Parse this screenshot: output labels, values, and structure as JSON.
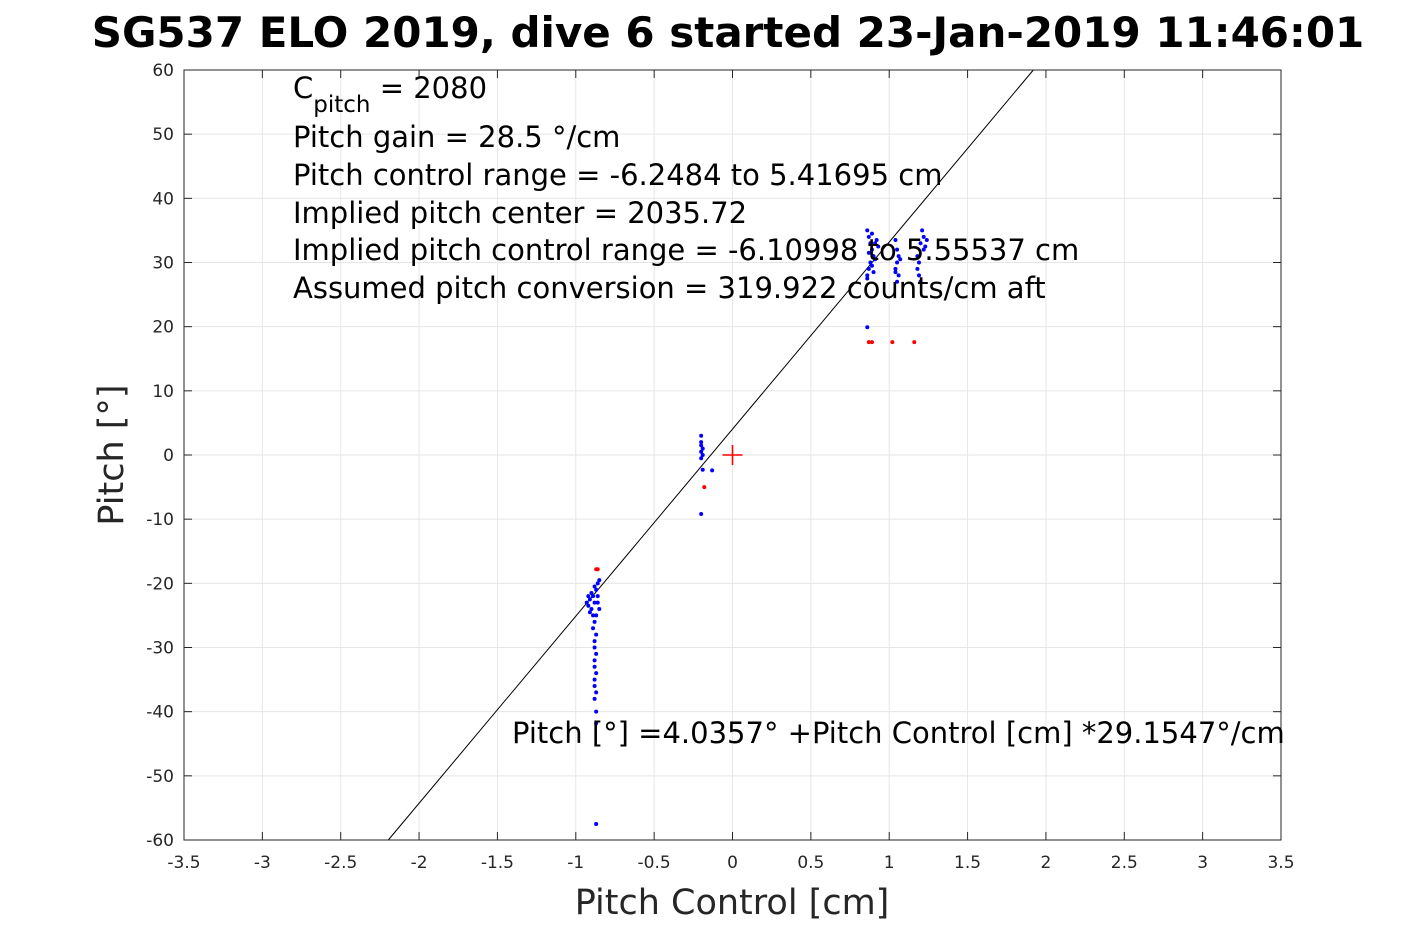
{
  "chart_data": {
    "type": "scatter",
    "title": "SG537 ELO 2019, dive 6 started 23-Jan-2019 11:46:01",
    "xlabel": "Pitch Control [cm]",
    "ylabel": "Pitch [°]",
    "xlim": [
      -3.5,
      3.5
    ],
    "ylim": [
      -60,
      60
    ],
    "xticks": [
      -3.5,
      -3,
      -2.5,
      -2,
      -1.5,
      -1,
      -0.5,
      0,
      0.5,
      1,
      1.5,
      2,
      2.5,
      3,
      3.5
    ],
    "xtick_labels": [
      "-3.5",
      "-3",
      "-2.5",
      "-2",
      "-1.5",
      "-1",
      "-0.5",
      "0",
      "0.5",
      "1",
      "1.5",
      "2",
      "2.5",
      "3",
      "3.5"
    ],
    "yticks": [
      -60,
      -50,
      -40,
      -30,
      -20,
      -10,
      0,
      10,
      20,
      30,
      40,
      50,
      60
    ],
    "ytick_labels": [
      "-60",
      "-50",
      "-40",
      "-30",
      "-20",
      "-10",
      "0",
      "10",
      "20",
      "30",
      "40",
      "50",
      "60"
    ],
    "grid": true,
    "colors": {
      "used": "#0000ff",
      "excluded": "#ff0000",
      "fit_line": "#000000",
      "center_marker": "#ff0000"
    },
    "annotations": {
      "cpitch": {
        "base": "C",
        "sub": "pitch",
        "rest": " = 2080"
      },
      "lines": [
        "Pitch gain = 28.5 °/cm",
        "Pitch control range = -6.2484 to 5.41695 cm",
        "Implied pitch center = 2035.72",
        "Implied pitch control range = -6.10998 to 5.55537 cm",
        "Assumed pitch conversion = 319.922 counts/cm aft"
      ],
      "fit_equation": "Pitch [°] =4.0357° +Pitch Control [cm] *29.1547°/cm"
    },
    "fit_line": {
      "intercept": 4.0357,
      "slope": 29.1547
    },
    "center_marker": {
      "x": 0,
      "y": 0
    },
    "series": [
      {
        "color_key": "used",
        "points": [
          [
            -0.93,
            -23.0
          ],
          [
            -0.92,
            -23.5
          ],
          [
            -0.91,
            -22.5
          ],
          [
            -0.9,
            -24.0
          ],
          [
            -0.89,
            -22.0
          ],
          [
            -0.88,
            -23.0
          ],
          [
            -0.87,
            -21.0
          ],
          [
            -0.86,
            -22.0
          ],
          [
            -0.85,
            -24.0
          ],
          [
            -0.9,
            -21.5
          ],
          [
            -0.88,
            -20.5
          ],
          [
            -0.86,
            -20.0
          ],
          [
            -0.89,
            -25.0
          ],
          [
            -0.88,
            -26.0
          ],
          [
            -0.87,
            -25.0
          ],
          [
            -0.89,
            -27.0
          ],
          [
            -0.87,
            -28.0
          ],
          [
            -0.88,
            -29.0
          ],
          [
            -0.88,
            -30.0
          ],
          [
            -0.87,
            -31.0
          ],
          [
            -0.88,
            -32.0
          ],
          [
            -0.88,
            -33.0
          ],
          [
            -0.87,
            -34.0
          ],
          [
            -0.88,
            -35.0
          ],
          [
            -0.88,
            -36.0
          ],
          [
            -0.87,
            -37.0
          ],
          [
            -0.88,
            -38.0
          ],
          [
            -0.87,
            -40.0
          ],
          [
            -0.87,
            -41.8
          ],
          [
            -0.87,
            -57.5
          ],
          [
            -0.85,
            -19.5
          ],
          [
            -0.86,
            -23.0
          ],
          [
            -0.91,
            -24.5
          ],
          [
            -0.92,
            -22.0
          ],
          [
            -0.2,
            3.0
          ],
          [
            -0.2,
            2.0
          ],
          [
            -0.2,
            1.5
          ],
          [
            -0.19,
            1.0
          ],
          [
            -0.2,
            0.5
          ],
          [
            -0.19,
            0.0
          ],
          [
            -0.2,
            -0.5
          ],
          [
            -0.19,
            -2.3
          ],
          [
            -0.13,
            -2.4
          ],
          [
            -0.2,
            -9.2
          ],
          [
            0.86,
            35.0
          ],
          [
            0.87,
            34.0
          ],
          [
            0.88,
            33.0
          ],
          [
            0.89,
            32.0
          ],
          [
            0.9,
            31.0
          ],
          [
            0.88,
            30.0
          ],
          [
            0.87,
            29.0
          ],
          [
            0.9,
            28.5
          ],
          [
            0.86,
            28.0
          ],
          [
            0.91,
            30.5
          ],
          [
            0.89,
            34.5
          ],
          [
            0.92,
            33.5
          ],
          [
            0.93,
            32.5
          ],
          [
            0.86,
            27.5
          ],
          [
            0.87,
            31.5
          ],
          [
            0.89,
            29.5
          ],
          [
            0.91,
            33.0
          ],
          [
            0.86,
            19.9
          ],
          [
            1.04,
            33.5
          ],
          [
            1.05,
            32.0
          ],
          [
            1.06,
            31.0
          ],
          [
            1.05,
            30.0
          ],
          [
            1.04,
            29.0
          ],
          [
            1.06,
            28.0
          ],
          [
            1.05,
            27.0
          ],
          [
            1.07,
            30.5
          ],
          [
            1.04,
            28.5
          ],
          [
            1.21,
            35.0
          ],
          [
            1.22,
            34.0
          ],
          [
            1.2,
            33.0
          ],
          [
            1.23,
            32.5
          ],
          [
            1.24,
            33.5
          ],
          [
            1.18,
            31.0
          ],
          [
            1.19,
            30.0
          ],
          [
            1.18,
            29.0
          ],
          [
            1.19,
            28.0
          ],
          [
            1.2,
            27.0
          ],
          [
            1.22,
            32.0
          ]
        ]
      },
      {
        "color_key": "excluded",
        "points": [
          [
            -0.87,
            -17.8
          ],
          [
            -0.86,
            -17.8
          ],
          [
            -0.18,
            -5.0
          ],
          [
            0.87,
            17.6
          ],
          [
            0.89,
            17.6
          ],
          [
            1.02,
            17.6
          ],
          [
            1.16,
            17.6
          ]
        ]
      }
    ]
  }
}
